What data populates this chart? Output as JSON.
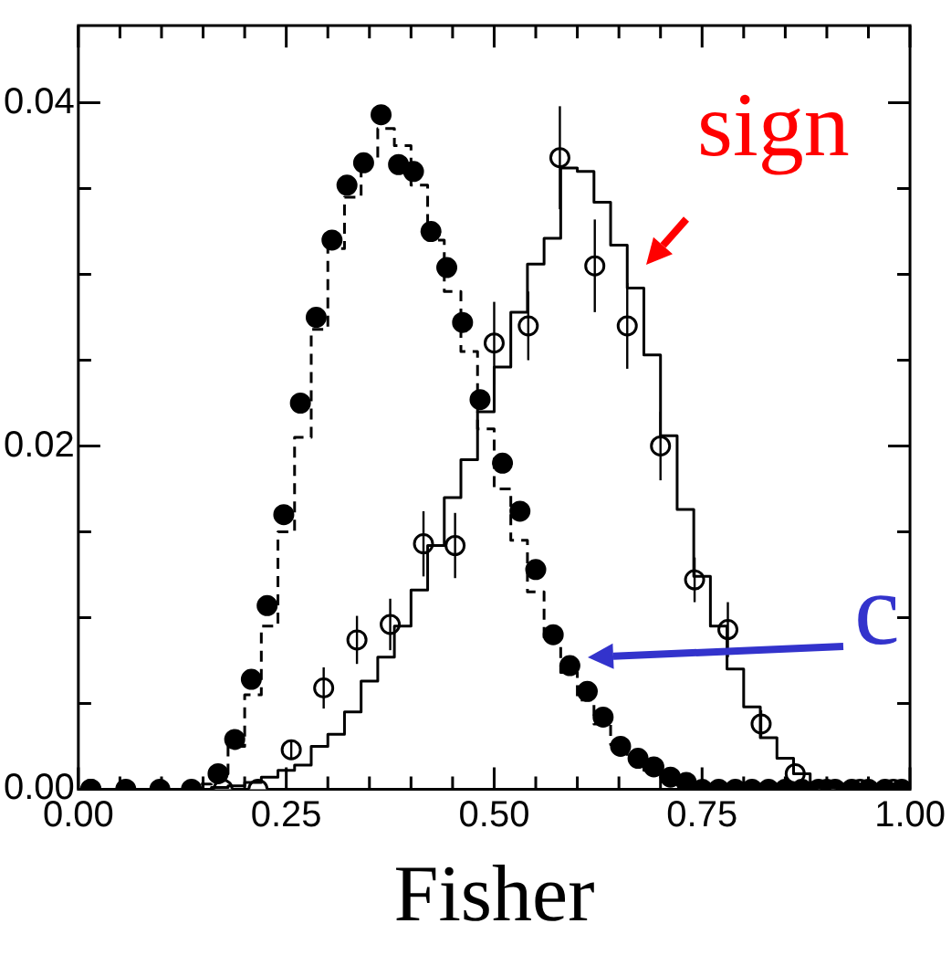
{
  "chart_data": {
    "type": "histogram",
    "xlabel": "Fisher",
    "xlim": [
      0,
      1
    ],
    "ylim": [
      0,
      0.0445
    ],
    "xticks": [
      {
        "value": 0,
        "label": "0.00"
      },
      {
        "value": 0.05,
        "label": null
      },
      {
        "value": 0.1,
        "label": null
      },
      {
        "value": 0.15,
        "label": null
      },
      {
        "value": 0.2,
        "label": null
      },
      {
        "value": 0.25,
        "label": "0.25"
      },
      {
        "value": 0.3,
        "label": null
      },
      {
        "value": 0.35,
        "label": null
      },
      {
        "value": 0.4,
        "label": null
      },
      {
        "value": 0.45,
        "label": null
      },
      {
        "value": 0.5,
        "label": "0.50"
      },
      {
        "value": 0.55,
        "label": null
      },
      {
        "value": 0.6,
        "label": null
      },
      {
        "value": 0.65,
        "label": null
      },
      {
        "value": 0.7,
        "label": null
      },
      {
        "value": 0.75,
        "label": "0.75"
      },
      {
        "value": 0.8,
        "label": null
      },
      {
        "value": 0.85,
        "label": null
      },
      {
        "value": 0.9,
        "label": null
      },
      {
        "value": 0.95,
        "label": null
      },
      {
        "value": 1,
        "label": "1.00"
      }
    ],
    "yticks": [
      {
        "value": 0,
        "label": "0.00"
      },
      {
        "value": 0.005,
        "label": null
      },
      {
        "value": 0.01,
        "label": null
      },
      {
        "value": 0.015,
        "label": null
      },
      {
        "value": 0.02,
        "label": "0.02"
      },
      {
        "value": 0.025,
        "label": null
      },
      {
        "value": 0.03,
        "label": null
      },
      {
        "value": 0.035,
        "label": null
      },
      {
        "value": 0.04,
        "label": "0.04"
      }
    ],
    "grid": false,
    "legend": false,
    "series": [
      {
        "type": "histogram",
        "color": "#000000",
        "line_style": "dashed",
        "bins": [
          0,
          0.02,
          0.04,
          0.06,
          0.08,
          0.1,
          0.12,
          0.14,
          0.16,
          0.18,
          0.2,
          0.22,
          0.24,
          0.26,
          0.28,
          0.3,
          0.32,
          0.34,
          0.36,
          0.38,
          0.4,
          0.42,
          0.44,
          0.46,
          0.48,
          0.5,
          0.52,
          0.54,
          0.56,
          0.58,
          0.6,
          0.62,
          0.64,
          0.66,
          0.68,
          0.7,
          0.72,
          0.74,
          0.76,
          0.78,
          0.8,
          0.82,
          0.84,
          0.86,
          0.88,
          0.9,
          0.92,
          0.94,
          0.96,
          0.98,
          1
        ],
        "values": [
          0,
          0,
          0,
          0,
          0,
          0,
          0,
          0.0003,
          0.0009,
          0.0025,
          0.0055,
          0.0095,
          0.015,
          0.0205,
          0.0268,
          0.0315,
          0.0345,
          0.0368,
          0.0385,
          0.0375,
          0.0352,
          0.032,
          0.029,
          0.0255,
          0.021,
          0.0175,
          0.0145,
          0.0115,
          0.0088,
          0.0068,
          0.0052,
          0.0038,
          0.0026,
          0.0018,
          0.0011,
          0.0007,
          0.0004,
          0.0002,
          0,
          0,
          0,
          0,
          0,
          0,
          0,
          0,
          0,
          0,
          0,
          0
        ]
      },
      {
        "type": "histogram",
        "color": "#000000",
        "line_style": "solid",
        "bins": [
          0,
          0.02,
          0.04,
          0.06,
          0.08,
          0.1,
          0.12,
          0.14,
          0.16,
          0.18,
          0.2,
          0.22,
          0.24,
          0.26,
          0.28,
          0.3,
          0.32,
          0.34,
          0.36,
          0.38,
          0.4,
          0.42,
          0.44,
          0.46,
          0.48,
          0.5,
          0.52,
          0.54,
          0.56,
          0.58,
          0.6,
          0.62,
          0.64,
          0.66,
          0.68,
          0.7,
          0.72,
          0.74,
          0.76,
          0.78,
          0.8,
          0.82,
          0.84,
          0.86,
          0.88,
          0.9,
          0.92,
          0.94,
          0.96,
          0.98,
          1
        ],
        "values": [
          0,
          0,
          0,
          0,
          0,
          0,
          0,
          0,
          0.0001,
          0.0002,
          0.0004,
          0.0007,
          0.0011,
          0.0014,
          0.0025,
          0.0032,
          0.0045,
          0.0063,
          0.0077,
          0.0095,
          0.0116,
          0.0142,
          0.017,
          0.0192,
          0.022,
          0.0246,
          0.0278,
          0.0306,
          0.0321,
          0.0362,
          0.036,
          0.0342,
          0.0317,
          0.0292,
          0.0253,
          0.0206,
          0.0163,
          0.0124,
          0.0095,
          0.007,
          0.0048,
          0.003,
          0.0018,
          0.0009,
          0.0004,
          0.0002,
          0,
          0,
          0,
          0
        ]
      },
      {
        "type": "scatter",
        "color": "#000000",
        "marker": "circle",
        "x": [
          0.015,
          0.057,
          0.098,
          0.136,
          0.168,
          0.188,
          0.208,
          0.227,
          0.247,
          0.267,
          0.286,
          0.305,
          0.323,
          0.343,
          0.364,
          0.385,
          0.403,
          0.424,
          0.443,
          0.462,
          0.483,
          0.51,
          0.531,
          0.55,
          0.571,
          0.591,
          0.612,
          0.631,
          0.652,
          0.673,
          0.692,
          0.712,
          0.731,
          0.75,
          0.77,
          0.79,
          0.81,
          0.83,
          0.85,
          0.87,
          0.89,
          0.91,
          0.93,
          0.95,
          0.97,
          0.99
        ],
        "values": [
          0,
          0,
          0,
          0,
          0.0009,
          0.0029,
          0.0064,
          0.0107,
          0.016,
          0.0225,
          0.0275,
          0.032,
          0.0352,
          0.0365,
          0.0393,
          0.0364,
          0.036,
          0.0325,
          0.0304,
          0.0272,
          0.0227,
          0.019,
          0.0162,
          0.0128,
          0.009,
          0.0072,
          0.0057,
          0.0042,
          0.0025,
          0.0018,
          0.0013,
          0.0007,
          0.0004,
          0,
          0,
          0,
          0,
          0,
          0,
          0,
          0,
          0,
          0,
          0,
          0,
          0
        ]
      },
      {
        "type": "scatter",
        "color": "#000000",
        "marker": "circle",
        "x": [
          0.015,
          0.174,
          0.216,
          0.256,
          0.295,
          0.335,
          0.375,
          0.415,
          0.453,
          0.5,
          0.541,
          0.579,
          0.621,
          0.66,
          0.7,
          0.741,
          0.781,
          0.821,
          0.862,
          0.9,
          0.94,
          0.98
        ],
        "values": [
          0,
          0,
          0,
          0.0023,
          0.0059,
          0.0087,
          0.0096,
          0.0143,
          0.0142,
          0.026,
          0.027,
          0.0368,
          0.0305,
          0.027,
          0.02,
          0.0122,
          0.0093,
          0.0038,
          0.0009,
          0,
          0,
          0
        ],
        "errors": [
          null,
          null,
          null,
          0.0005,
          0.0012,
          0.0014,
          0.0015,
          0.0019,
          0.0019,
          0.0024,
          0.002,
          0.003,
          0.0027,
          0.0025,
          0.002,
          0.0013,
          0.0016,
          0.0008,
          null,
          null,
          null,
          null
        ]
      }
    ],
    "annotations": [
      "sign",
      "c"
    ]
  }
}
